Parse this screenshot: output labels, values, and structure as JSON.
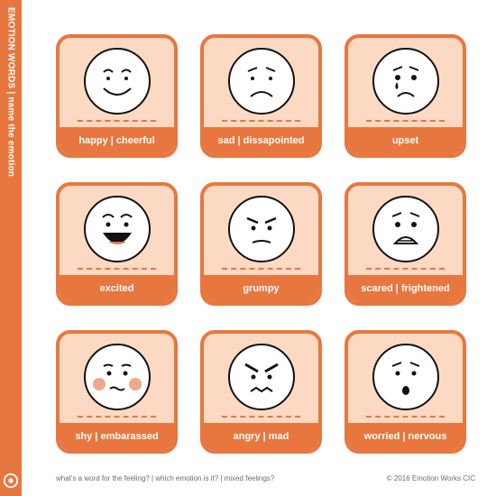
{
  "side_title": "EMOTION WORDS | name the emotion",
  "cards": [
    {
      "label": "happy | cheerful",
      "face": "happy-face-icon"
    },
    {
      "label": "sad | dissapointed",
      "face": "sad-face-icon"
    },
    {
      "label": "upset",
      "face": "upset-face-icon"
    },
    {
      "label": "excited",
      "face": "excited-face-icon"
    },
    {
      "label": "grumpy",
      "face": "grumpy-face-icon"
    },
    {
      "label": "scared | frightened",
      "face": "scared-face-icon"
    },
    {
      "label": "shy | embarassed",
      "face": "shy-face-icon"
    },
    {
      "label": "angry | mad",
      "face": "angry-face-icon"
    },
    {
      "label": "worried | nervous",
      "face": "worried-face-icon"
    }
  ],
  "footer": {
    "prompt": "what's a word for the feeling? | which emotion is it? | mixed feelings?",
    "copyright": "© 2016 Emotion Works CIC"
  },
  "colors": {
    "accent": "#e8773f",
    "card_fill": "#fbd9c2",
    "blush": "#f2a88a"
  }
}
